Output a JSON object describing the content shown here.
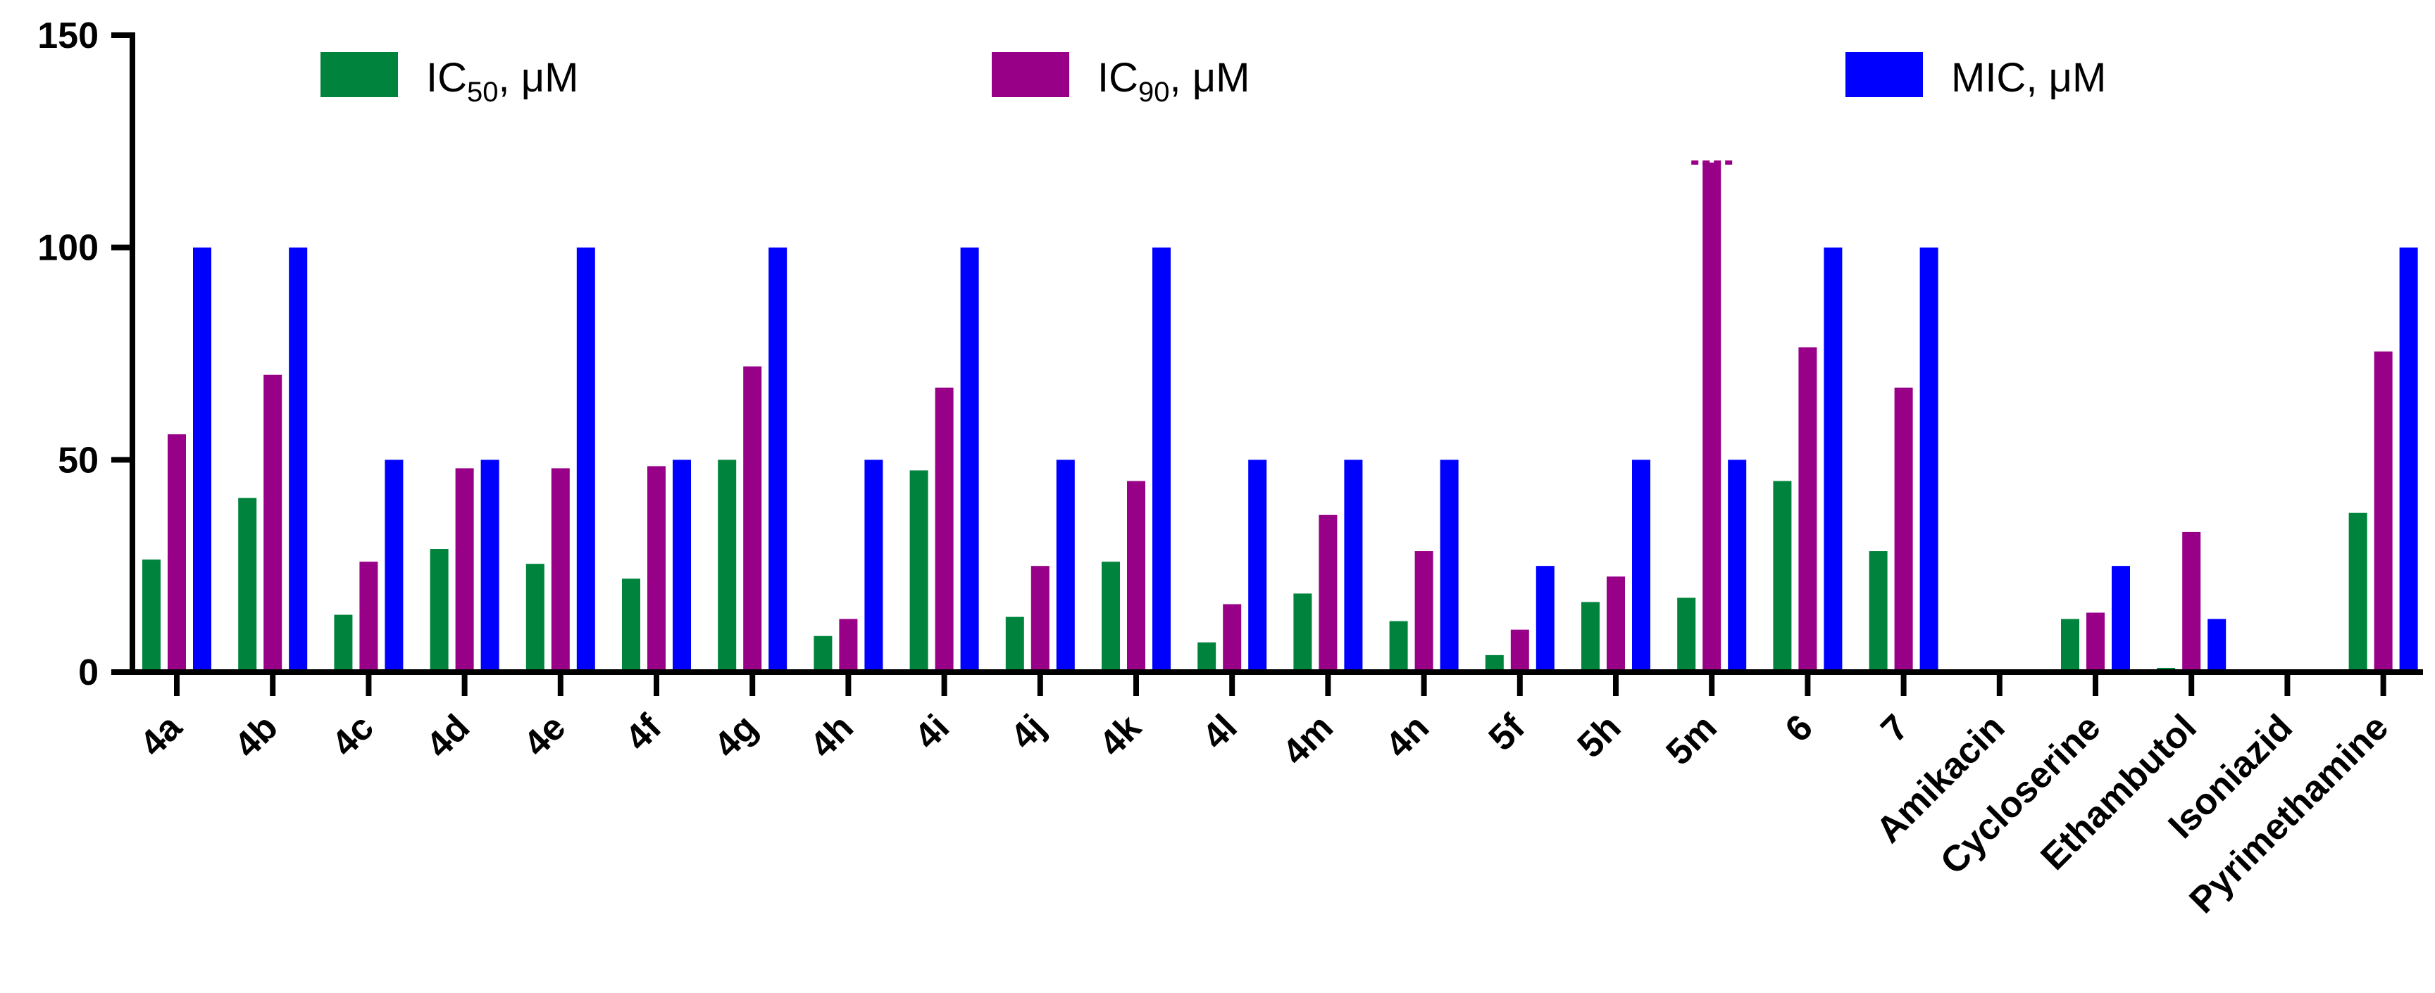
{
  "chart_data": {
    "type": "bar",
    "ylim": [
      0,
      150
    ],
    "yticks": [
      "0",
      "50",
      "100",
      "150"
    ],
    "legend_position": "top",
    "categories": [
      "4a",
      "4b",
      "4c",
      "4d",
      "4e",
      "4f",
      "4g",
      "4h",
      "4i",
      "4j",
      "4k",
      "4l",
      "4m",
      "4n",
      "5f",
      "5h",
      "5m",
      "6",
      "7",
      "Amikacin",
      "Cycloserine",
      "Ethambutol",
      "Isoniazid",
      "Pyrimethamine"
    ],
    "series": [
      {
        "name": "IC50, μM",
        "name_main": "IC",
        "name_sub": "50",
        "name_tail": ", μM",
        "color": "#00843D",
        "values": [
          26.5,
          41,
          13.5,
          29,
          25.5,
          22,
          50,
          8.5,
          47.5,
          13,
          26,
          7,
          18.5,
          12,
          4,
          16.5,
          17.5,
          45,
          28.5,
          0,
          12.5,
          1,
          0,
          37.5
        ]
      },
      {
        "name": "IC90, μM",
        "name_main": "IC",
        "name_sub": "90",
        "name_tail": ", μM",
        "color": "#990088",
        "values": [
          56,
          70,
          26,
          48,
          48,
          48.5,
          72,
          12.5,
          67,
          25,
          45,
          16,
          37,
          28.5,
          10,
          22.5,
          120,
          76.5,
          67,
          0,
          14,
          33,
          0,
          75.5
        ]
      },
      {
        "name": "MIC, μM",
        "name_main": "MIC, μM",
        "name_sub": "",
        "name_tail": "",
        "color": "#0000FF",
        "values": [
          100,
          100,
          50,
          50,
          100,
          50,
          100,
          50,
          100,
          50,
          100,
          50,
          50,
          50,
          25,
          50,
          50,
          100,
          100,
          0,
          25,
          12.5,
          0,
          100
        ]
      }
    ],
    "annotations": [
      {
        "category": "5m",
        "series": "IC90, μM",
        "type": "dashed-cap"
      }
    ]
  }
}
